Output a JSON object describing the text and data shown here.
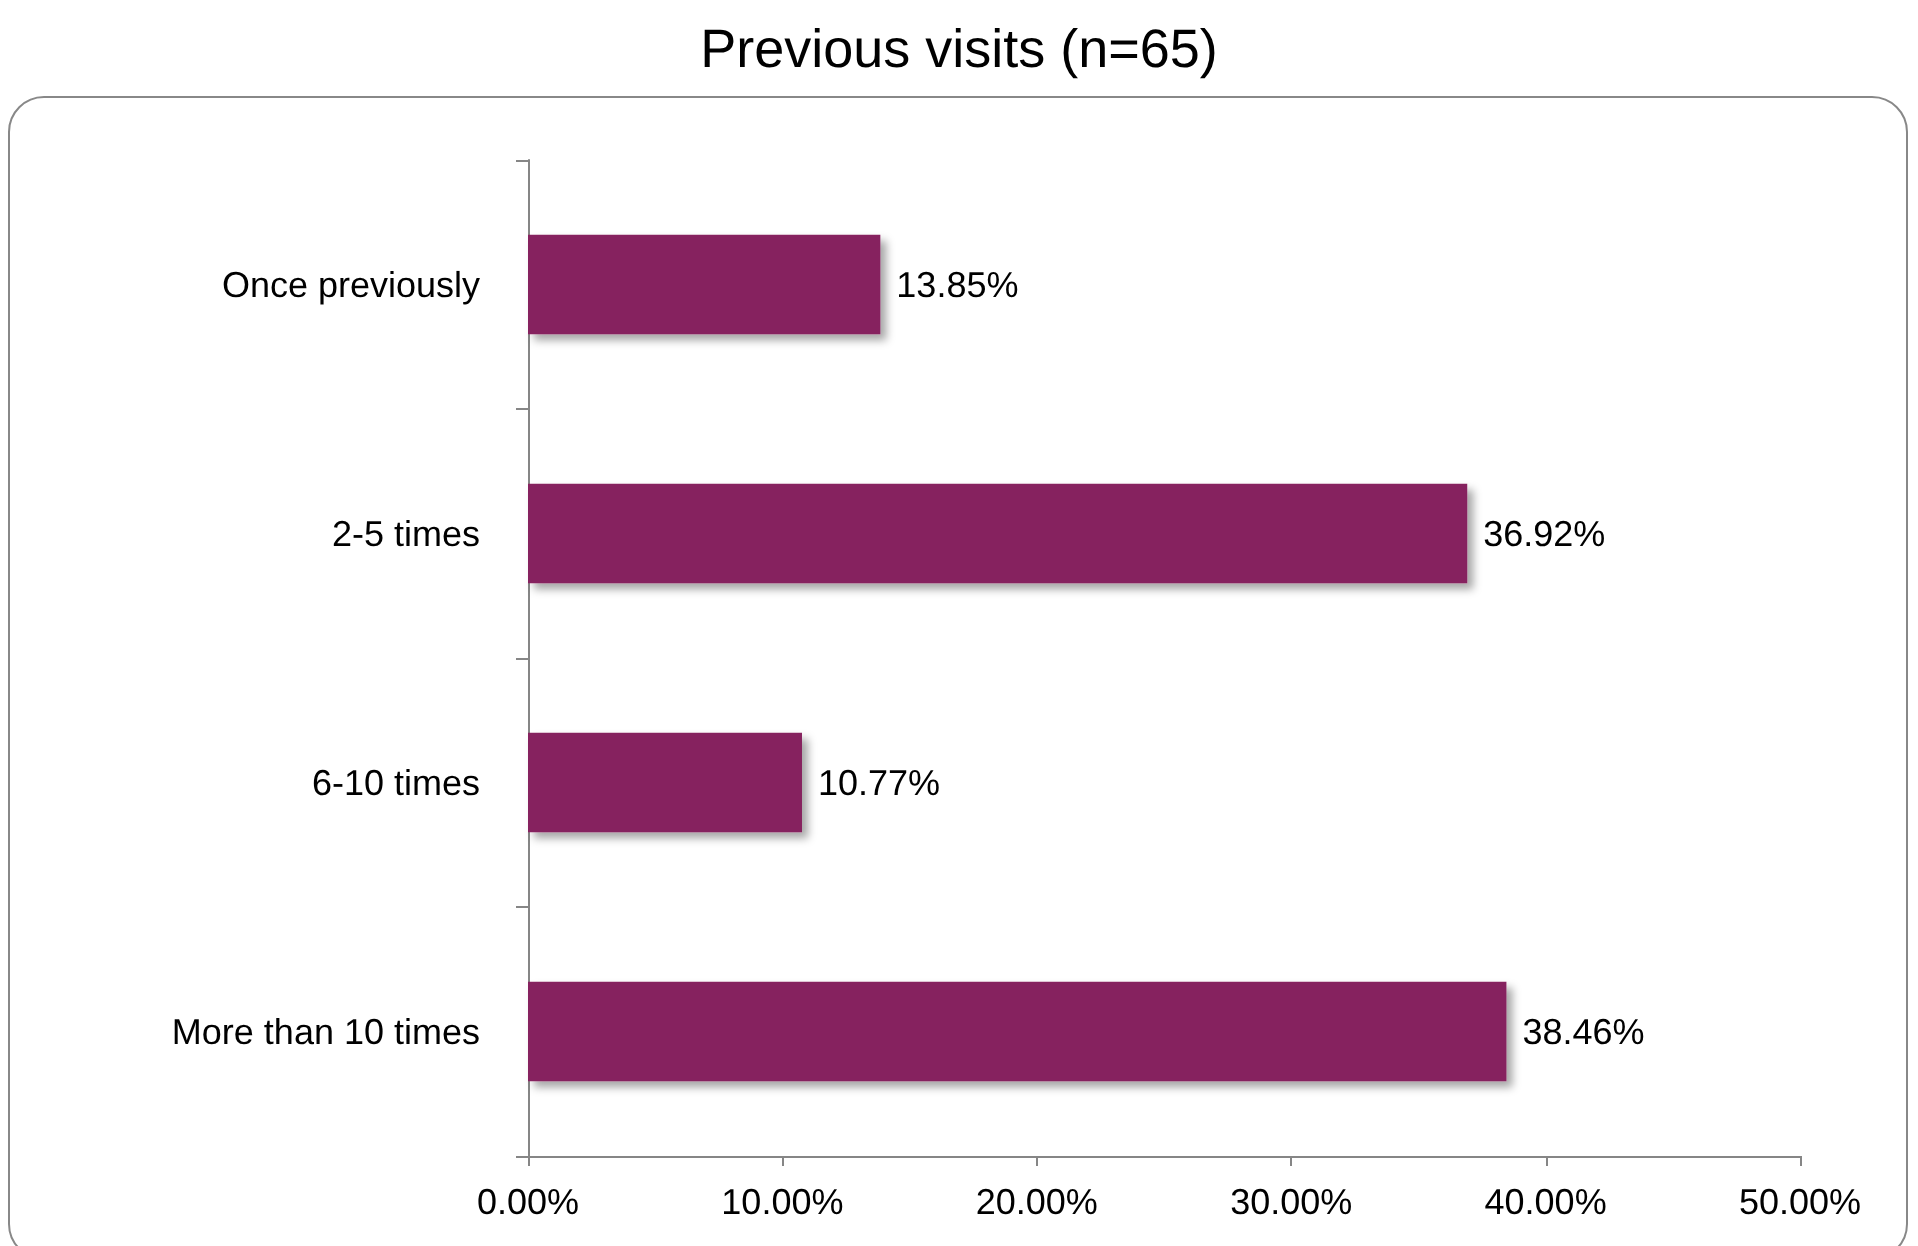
{
  "chart_data": {
    "type": "bar",
    "title": "Previous visits (n=65)",
    "orientation": "horizontal",
    "categories": [
      "Once previously",
      "2-5 times",
      "6-10 times",
      "More than 10 times"
    ],
    "values": [
      13.85,
      36.92,
      10.77,
      38.46
    ],
    "color": "#86235f",
    "value_labels": [
      "13.85%",
      "36.92%",
      "10.77%",
      "38.46%"
    ],
    "xlim": [
      0,
      50
    ],
    "xticks": [
      {
        "value": 0,
        "label": "0.00%"
      },
      {
        "value": 10,
        "label": "10.00%"
      },
      {
        "value": 20,
        "label": "20.00%"
      },
      {
        "value": 30,
        "label": "30.00%"
      },
      {
        "value": 40,
        "label": "40.00%"
      },
      {
        "value": 50,
        "label": "50.00%"
      }
    ],
    "grid": false
  }
}
